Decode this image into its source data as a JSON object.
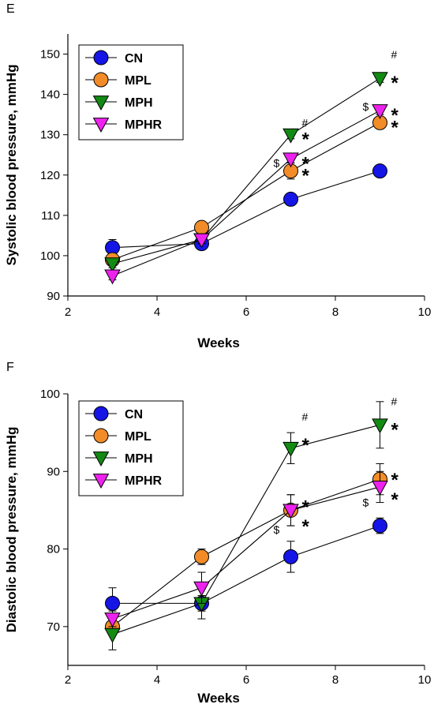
{
  "chart_data": [
    {
      "type": "line",
      "panel_label": "E",
      "xlabel": "Weeks",
      "ylabel": "Systolic blood pressure, mmHg",
      "xlim": [
        2,
        10
      ],
      "ylim": [
        90,
        155
      ],
      "x_ticks": [
        2,
        4,
        6,
        8,
        10
      ],
      "y_ticks": [
        90,
        100,
        110,
        120,
        130,
        140,
        150
      ],
      "legend_position": "top-left",
      "x": [
        3,
        5,
        7,
        9
      ],
      "series": [
        {
          "name": "CN",
          "marker": "circle",
          "color": "#1515e6",
          "values": [
            102,
            103,
            114,
            121
          ],
          "errors": [
            2,
            1,
            1,
            1
          ]
        },
        {
          "name": "MPL",
          "marker": "circle",
          "color": "#f28c28",
          "values": [
            99,
            107,
            121,
            133
          ],
          "errors": [
            1,
            1,
            2,
            1
          ]
        },
        {
          "name": "MPH",
          "marker": "triangle-down",
          "color": "#138a13",
          "values": [
            98,
            104,
            130,
            144
          ],
          "errors": [
            1,
            1,
            1,
            1
          ]
        },
        {
          "name": "MPHR",
          "marker": "triangle-down",
          "color": "#ee22ee",
          "values": [
            95,
            104,
            124,
            136
          ],
          "errors": [
            1,
            1,
            1,
            1
          ]
        }
      ],
      "annotations": [
        {
          "text": "#",
          "x": 7,
          "y": 130,
          "type": "sig"
        },
        {
          "text": "*",
          "x": 7,
          "y": 130,
          "type": "star"
        },
        {
          "text": "$",
          "x": 7,
          "y": 123,
          "type": "sig-left"
        },
        {
          "text": "*",
          "x": 7,
          "y": 124,
          "type": "star"
        },
        {
          "text": "*",
          "x": 7,
          "y": 121,
          "type": "star"
        },
        {
          "text": "#",
          "x": 9,
          "y": 147,
          "type": "sig"
        },
        {
          "text": "*",
          "x": 9,
          "y": 144,
          "type": "star"
        },
        {
          "text": "$",
          "x": 9,
          "y": 137,
          "type": "sig-left"
        },
        {
          "text": "*",
          "x": 9,
          "y": 136,
          "type": "star"
        },
        {
          "text": "*",
          "x": 9,
          "y": 133,
          "type": "star"
        }
      ]
    },
    {
      "type": "line",
      "panel_label": "F",
      "xlabel": "Weeks",
      "ylabel": "Diastolic blood pressure, mmHg",
      "xlim": [
        2,
        10
      ],
      "ylim": [
        65,
        100
      ],
      "x_ticks": [
        2,
        4,
        6,
        8,
        10
      ],
      "y_ticks": [
        70,
        80,
        90,
        100
      ],
      "legend_position": "top-left",
      "x": [
        3,
        5,
        7,
        9
      ],
      "series": [
        {
          "name": "CN",
          "marker": "circle",
          "color": "#1515e6",
          "values": [
            73,
            73,
            79,
            83
          ],
          "errors": [
            2,
            1,
            2,
            1
          ]
        },
        {
          "name": "MPL",
          "marker": "circle",
          "color": "#f28c28",
          "values": [
            70,
            79,
            85,
            89
          ],
          "errors": [
            1,
            1,
            2,
            2
          ]
        },
        {
          "name": "MPH",
          "marker": "triangle-down",
          "color": "#138a13",
          "values": [
            69,
            73,
            93,
            96
          ],
          "errors": [
            2,
            2,
            2,
            3
          ]
        },
        {
          "name": "MPHR",
          "marker": "triangle-down",
          "color": "#ee22ee",
          "values": [
            71,
            75,
            85,
            88
          ],
          "errors": [
            1,
            2,
            2,
            2
          ]
        }
      ],
      "annotations": [
        {
          "text": "#",
          "x": 7,
          "y": 95.5,
          "type": "sig"
        },
        {
          "text": "*",
          "x": 7,
          "y": 94,
          "type": "star"
        },
        {
          "text": "*",
          "x": 7,
          "y": 86,
          "type": "star"
        },
        {
          "text": "$",
          "x": 7,
          "y": 82.5,
          "type": "sig-left"
        },
        {
          "text": "*",
          "x": 7,
          "y": 83.5,
          "type": "star"
        },
        {
          "text": "#",
          "x": 9,
          "y": 97.5,
          "type": "sig"
        },
        {
          "text": "*",
          "x": 9,
          "y": 96,
          "type": "star"
        },
        {
          "text": "*",
          "x": 9,
          "y": 89.5,
          "type": "star"
        },
        {
          "text": "$",
          "x": 9,
          "y": 86,
          "type": "sig-left"
        },
        {
          "text": "*",
          "x": 9,
          "y": 87,
          "type": "star"
        }
      ]
    }
  ]
}
